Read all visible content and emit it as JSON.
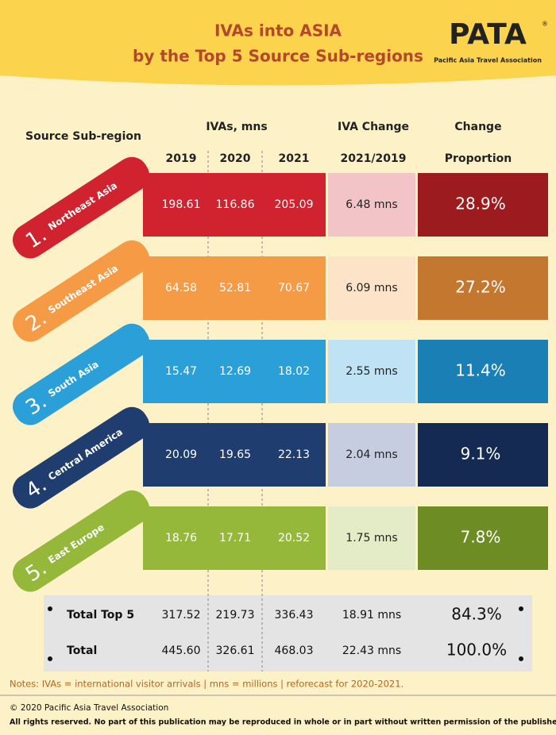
{
  "header": {
    "title": [
      "IVAs into ASIA",
      "by the Top 5 Source Sub-regions"
    ],
    "logo": "PATA",
    "logo_mark": "®",
    "logo_subtitle": "Pacific Asia Travel Association"
  },
  "table": {
    "headers": {
      "region": "Source Sub-region",
      "ivas": "IVAs, mns",
      "years": [
        "2019",
        "2020",
        "2021"
      ],
      "change": "IVA Change",
      "change_period": "2021/2019",
      "proportion": [
        "Change",
        "Proportion"
      ]
    },
    "rows": [
      {
        "rank": "1.",
        "region": "Northeast Asia",
        "values": [
          "198.61",
          "116.86",
          "205.09"
        ],
        "change": "6.48 mns",
        "proportion": "28.9%"
      },
      {
        "rank": "2.",
        "region": "Southeast Asia",
        "values": [
          "64.58",
          "52.81",
          "70.67"
        ],
        "change": "6.09 mns",
        "proportion": "27.2%"
      },
      {
        "rank": "3.",
        "region": "South Asia",
        "values": [
          "15.47",
          "12.69",
          "18.02"
        ],
        "change": "2.55 mns",
        "proportion": "11.4%"
      },
      {
        "rank": "4.",
        "region": "Central America",
        "values": [
          "20.09",
          "19.65",
          "22.13"
        ],
        "change": "2.04 mns",
        "proportion": "9.1%"
      },
      {
        "rank": "5.",
        "region": "East Europe",
        "values": [
          "18.76",
          "17.71",
          "20.52"
        ],
        "change": "1.75 mns",
        "proportion": "7.8%"
      }
    ],
    "totals": [
      {
        "label": "Total Top 5",
        "values": [
          "317.52",
          "219.73",
          "336.43"
        ],
        "change": "18.91 mns",
        "proportion": "84.3%"
      },
      {
        "label": "Total",
        "values": [
          "445.60",
          "326.61",
          "468.03"
        ],
        "change": "22.43 mns",
        "proportion": "100.0%"
      }
    ]
  },
  "notes": "Notes: IVAs = international visitor arrivals | mns = millions | reforecast for 2020-2021.",
  "footer": {
    "copyright": "© 2020 Pacific Asia Travel Association",
    "rights": "All rights reserved. No part of this publication may be reproduced in whole or in part without written permission of the publisher."
  }
}
